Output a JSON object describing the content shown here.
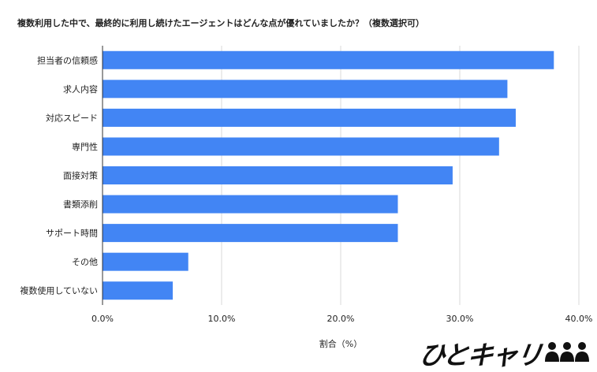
{
  "chart_data": {
    "type": "bar",
    "orientation": "horizontal",
    "title": "複数利用した中で、最終的に利用し続けたエージェントはどんな点が優れていましたか？（複数選択可）",
    "categories": [
      "担当者の信頼感",
      "求人内容",
      "対応スピード",
      "専門性",
      "面接対策",
      "書類添削",
      "サポート時間",
      "その他",
      "複数使用していない"
    ],
    "values": [
      37.9,
      34.0,
      34.7,
      33.3,
      29.4,
      24.8,
      24.8,
      7.2,
      5.9
    ],
    "xlabel": "割合（%）",
    "ylabel": "",
    "xlim": [
      0,
      40
    ],
    "xticks": [
      0,
      10,
      20,
      30,
      40
    ],
    "xtick_labels": [
      "0.0%",
      "10.0%",
      "20.0%",
      "30.0%",
      "40.0%"
    ],
    "grid": true,
    "bar_color": "#4285f4"
  },
  "logo": {
    "text": "ひとキャリ"
  }
}
